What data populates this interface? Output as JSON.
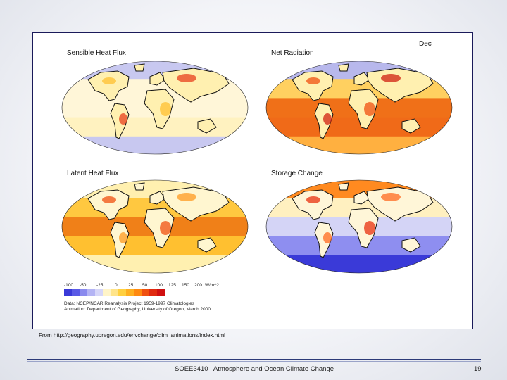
{
  "figure": {
    "month": "Dec",
    "maps": [
      {
        "title": "Sensible Heat Flux",
        "scheme": "sensible"
      },
      {
        "title": "Net Radiation",
        "scheme": "netrad"
      },
      {
        "title": "Latent Heat Flux",
        "scheme": "latent"
      },
      {
        "title": "Storage Change",
        "scheme": "storage"
      }
    ],
    "legend": {
      "ticks": [
        "-100",
        "-50",
        "-25",
        "0",
        "25",
        "50",
        "100",
        "125",
        "150",
        "200",
        "W/m^2"
      ],
      "colors": [
        "#3a3ad8",
        "#5a5ae6",
        "#8a8aee",
        "#b4b4f4",
        "#d6d6f8",
        "#fff4c8",
        "#ffe48a",
        "#ffd040",
        "#ffb020",
        "#ff8a10",
        "#f05010",
        "#e02a10",
        "#d01010"
      ]
    },
    "credits": [
      "Data:  NCEP/NCAR Reanalysis Project  1959-1997 Climatologies",
      "Animation:  Department of Geography, University of Oregon, March 2000"
    ]
  },
  "source_note": "From http://geography.uoregon.edu/envchange/clim_animations/index.html",
  "footer": {
    "title": "SOEE3410 : Atmosphere and Ocean Climate Change",
    "page_number": "19"
  }
}
